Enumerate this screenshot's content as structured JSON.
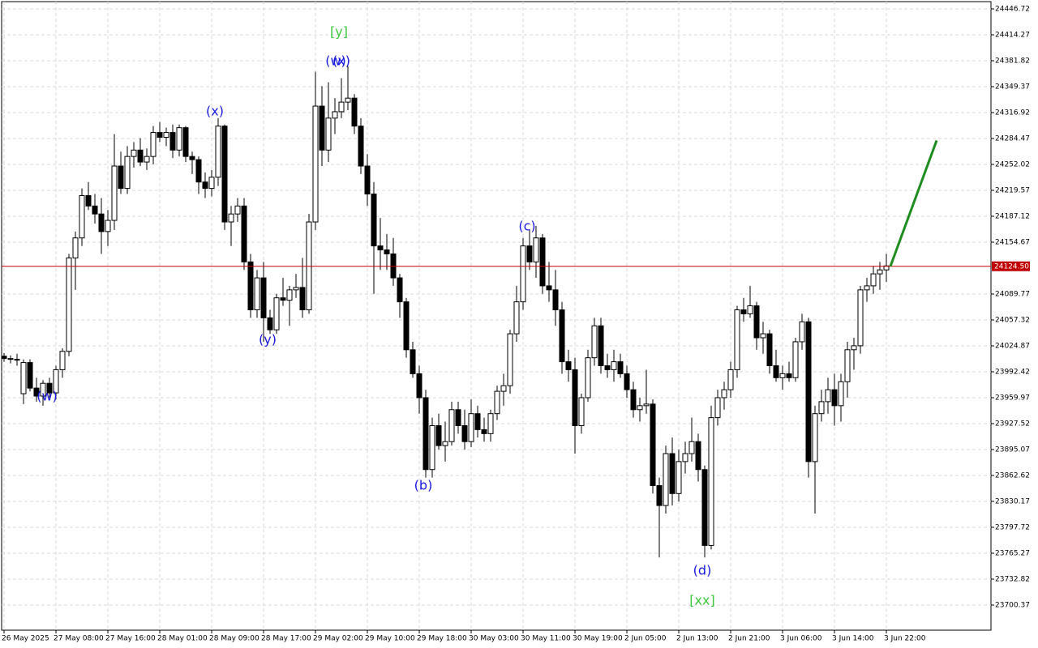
{
  "chart_data": {
    "type": "candlestick",
    "categories": [
      "26 May 2025",
      null,
      null,
      null,
      null,
      null,
      null,
      null,
      "27 May 08:00",
      null,
      null,
      null,
      null,
      null,
      null,
      null,
      "27 May 16:00",
      null,
      null,
      null,
      null,
      null,
      null,
      null,
      "28 May 01:00",
      null,
      null,
      null,
      null,
      null,
      null,
      null,
      "28 May 09:00",
      null,
      null,
      null,
      null,
      null,
      null,
      null,
      "28 May 17:00",
      null,
      null,
      null,
      null,
      null,
      null,
      null,
      "29 May 02:00",
      null,
      null,
      null,
      null,
      null,
      null,
      null,
      "29 May 10:00",
      null,
      null,
      null,
      null,
      null,
      null,
      null,
      "29 May 18:00",
      null,
      null,
      null,
      null,
      null,
      null,
      null,
      "30 May 03:00",
      null,
      null,
      null,
      null,
      null,
      null,
      null,
      "30 May 11:00",
      null,
      null,
      null,
      null,
      null,
      null,
      null,
      "30 May 19:00",
      null,
      null,
      null,
      null,
      null,
      null,
      null,
      "2 Jun 05:00",
      null,
      null,
      null,
      null,
      null,
      null,
      null,
      "2 Jun 13:00",
      null,
      null,
      null,
      null,
      null,
      null,
      null,
      "2 Jun 21:00",
      null,
      null,
      null,
      null,
      null,
      null,
      null,
      "3 Jun 06:00",
      null,
      null,
      null,
      null,
      null,
      null,
      null,
      "3 Jun 14:00",
      null,
      null,
      null,
      null,
      null,
      null,
      null,
      "3 Jun 22:00"
    ],
    "ohlc": [
      [
        24012,
        24016,
        24005,
        24009
      ],
      [
        24009,
        24013,
        24003,
        24008
      ],
      [
        24008,
        24015,
        24000,
        24007
      ],
      [
        23965,
        24008,
        23952,
        24004
      ],
      [
        24004,
        24008,
        23968,
        23972
      ],
      [
        23972,
        23985,
        23955,
        23962
      ],
      [
        23962,
        23982,
        23950,
        23978
      ],
      [
        23978,
        23985,
        23960,
        23966
      ],
      [
        23966,
        24000,
        23958,
        23995
      ],
      [
        23995,
        24022,
        23985,
        24018
      ],
      [
        24018,
        24140,
        24012,
        24135
      ],
      [
        24135,
        24168,
        24095,
        24160
      ],
      [
        24160,
        24222,
        24150,
        24213
      ],
      [
        24213,
        24230,
        24195,
        24200
      ],
      [
        24200,
        24215,
        24178,
        24190
      ],
      [
        24190,
        24210,
        24140,
        24168
      ],
      [
        24168,
        24195,
        24150,
        24182
      ],
      [
        24182,
        24290,
        24170,
        24250
      ],
      [
        24250,
        24268,
        24215,
        24222
      ],
      [
        24222,
        24275,
        24215,
        24262
      ],
      [
        24262,
        24280,
        24248,
        24270
      ],
      [
        24270,
        24285,
        24250,
        24255
      ],
      [
        24255,
        24272,
        24245,
        24262
      ],
      [
        24262,
        24300,
        24252,
        24292
      ],
      [
        24292,
        24305,
        24280,
        24286
      ],
      [
        24286,
        24298,
        24275,
        24292
      ],
      [
        24292,
        24302,
        24260,
        24270
      ],
      [
        24270,
        24302,
        24262,
        24298
      ],
      [
        24298,
        24300,
        24255,
        24262
      ],
      [
        24262,
        24268,
        24240,
        24258
      ],
      [
        24258,
        24262,
        24215,
        24230
      ],
      [
        24230,
        24242,
        24210,
        24222
      ],
      [
        24222,
        24245,
        24212,
        24236
      ],
      [
        24236,
        24310,
        24225,
        24300
      ],
      [
        24300,
        24302,
        24170,
        24180
      ],
      [
        24180,
        24200,
        24150,
        24190
      ],
      [
        24190,
        24210,
        24180,
        24200
      ],
      [
        24200,
        24210,
        24120,
        24130
      ],
      [
        24130,
        24140,
        24060,
        24070
      ],
      [
        24070,
        24120,
        24060,
        24110
      ],
      [
        24110,
        24130,
        24030,
        24060
      ],
      [
        24060,
        24070,
        24040,
        24045
      ],
      [
        24045,
        24090,
        24040,
        24085
      ],
      [
        24085,
        24110,
        24075,
        24082
      ],
      [
        24082,
        24100,
        24050,
        24095
      ],
      [
        24095,
        24115,
        24085,
        24098
      ],
      [
        24098,
        24135,
        24060,
        24070
      ],
      [
        24070,
        24190,
        24065,
        24180
      ],
      [
        24180,
        24368,
        24170,
        24325
      ],
      [
        24325,
        24350,
        24250,
        24270
      ],
      [
        24270,
        24355,
        24255,
        24310
      ],
      [
        24310,
        24335,
        24290,
        24318
      ],
      [
        24318,
        24360,
        24310,
        24330
      ],
      [
        24330,
        24375,
        24320,
        24335
      ],
      [
        24335,
        24340,
        24290,
        24300
      ],
      [
        24300,
        24310,
        24240,
        24250
      ],
      [
        24250,
        24265,
        24200,
        24215
      ],
      [
        24215,
        24230,
        24090,
        24150
      ],
      [
        24150,
        24185,
        24120,
        24145
      ],
      [
        24145,
        24165,
        24120,
        24140
      ],
      [
        24140,
        24160,
        24100,
        24110
      ],
      [
        24110,
        24115,
        24060,
        24080
      ],
      [
        24080,
        24085,
        24010,
        24020
      ],
      [
        24020,
        24030,
        23985,
        23990
      ],
      [
        23990,
        24000,
        23940,
        23960
      ],
      [
        23960,
        23970,
        23860,
        23870
      ],
      [
        23870,
        23935,
        23860,
        23925
      ],
      [
        23925,
        23940,
        23895,
        23900
      ],
      [
        23900,
        23930,
        23880,
        23905
      ],
      [
        23905,
        23955,
        23900,
        23945
      ],
      [
        23945,
        23955,
        23915,
        23925
      ],
      [
        23925,
        23945,
        23895,
        23905
      ],
      [
        23905,
        23958,
        23898,
        23940
      ],
      [
        23940,
        23950,
        23910,
        23920
      ],
      [
        23920,
        23935,
        23905,
        23915
      ],
      [
        23915,
        23945,
        23905,
        23940
      ],
      [
        23940,
        23975,
        23932,
        23968
      ],
      [
        23968,
        23990,
        23950,
        23975
      ],
      [
        23975,
        24045,
        23965,
        24040
      ],
      [
        24040,
        24100,
        24030,
        24080
      ],
      [
        24080,
        24160,
        24070,
        24150
      ],
      [
        24150,
        24170,
        24120,
        24130
      ],
      [
        24130,
        24175,
        24110,
        24160
      ],
      [
        24160,
        24165,
        24090,
        24100
      ],
      [
        24100,
        24130,
        24080,
        24095
      ],
      [
        24095,
        24120,
        24050,
        24070
      ],
      [
        24070,
        24080,
        23990,
        24005
      ],
      [
        24005,
        24020,
        23980,
        23995
      ],
      [
        23995,
        24010,
        23890,
        23925
      ],
      [
        23925,
        23965,
        23915,
        23960
      ],
      [
        23960,
        24020,
        23955,
        24010
      ],
      [
        24010,
        24060,
        24000,
        24050
      ],
      [
        24050,
        24060,
        23990,
        24000
      ],
      [
        24000,
        24015,
        23985,
        23995
      ],
      [
        23995,
        24020,
        23980,
        24005
      ],
      [
        24005,
        24015,
        23985,
        23990
      ],
      [
        23990,
        24000,
        23960,
        23970
      ],
      [
        23970,
        23980,
        23935,
        23945
      ],
      [
        23945,
        23960,
        23930,
        23950
      ],
      [
        23950,
        23995,
        23940,
        23952
      ],
      [
        23952,
        23958,
        23840,
        23850
      ],
      [
        23850,
        23860,
        23760,
        23825
      ],
      [
        23825,
        23900,
        23815,
        23890
      ],
      [
        23890,
        23910,
        23825,
        23840
      ],
      [
        23840,
        23895,
        23830,
        23880
      ],
      [
        23880,
        23905,
        23865,
        23890
      ],
      [
        23890,
        23935,
        23880,
        23905
      ],
      [
        23905,
        23915,
        23855,
        23870
      ],
      [
        23870,
        23875,
        23760,
        23775
      ],
      [
        23775,
        23950,
        23770,
        23935
      ],
      [
        23935,
        23970,
        23925,
        23960
      ],
      [
        23960,
        23980,
        23945,
        23970
      ],
      [
        23970,
        24005,
        23960,
        23995
      ],
      [
        23995,
        24075,
        23985,
        24070
      ],
      [
        24070,
        24085,
        24055,
        24065
      ],
      [
        24065,
        24100,
        24060,
        24075
      ],
      [
        24075,
        24080,
        24020,
        24035
      ],
      [
        24035,
        24055,
        24015,
        24040
      ],
      [
        24040,
        24045,
        23990,
        24000
      ],
      [
        24000,
        24020,
        23980,
        23985
      ],
      [
        23985,
        24000,
        23970,
        23990
      ],
      [
        23990,
        24005,
        23980,
        23985
      ],
      [
        23985,
        24035,
        23980,
        24030
      ],
      [
        24030,
        24065,
        24020,
        24055
      ],
      [
        24055,
        24060,
        23860,
        23880
      ],
      [
        23880,
        23950,
        23815,
        23940
      ],
      [
        23940,
        23970,
        23930,
        23955
      ],
      [
        23955,
        23985,
        23940,
        23970
      ],
      [
        23970,
        23990,
        23925,
        23950
      ],
      [
        23950,
        23990,
        23930,
        23980
      ],
      [
        23980,
        24030,
        23960,
        24020
      ],
      [
        24020,
        24035,
        23995,
        24025
      ],
      [
        24025,
        24100,
        24015,
        24095
      ],
      [
        24095,
        24110,
        24080,
        24100
      ],
      [
        24100,
        24125,
        24090,
        24115
      ],
      [
        24115,
        24130,
        24095,
        24120
      ],
      [
        24120,
        24140,
        24105,
        24125
      ]
    ],
    "up_color": "#ffffff",
    "down_color": "#000000",
    "ylim": [
      23668.93,
      24455.85
    ],
    "yticks": [
      24446.72,
      24414.27,
      24381.82,
      24349.37,
      24316.92,
      24284.47,
      24252.02,
      24219.57,
      24187.12,
      24154.67,
      24089.77,
      24057.32,
      24024.87,
      23992.42,
      23959.97,
      23927.52,
      23895.07,
      23862.62,
      23830.17,
      23797.72,
      23765.27,
      23732.82,
      23700.37
    ],
    "grid": true,
    "current_price": {
      "value": 24124.5,
      "label": "24124.50"
    },
    "current_color": "#c00000",
    "forecast": {
      "start": 24124.5,
      "end": 24282
    },
    "forecast_color": "#1e8c1e",
    "annotations": [
      {
        "text": "(w)",
        "color": "#1a1adc"
      },
      {
        "text": "(x)",
        "color": "#1a1adc"
      },
      {
        "text": "(y)",
        "color": "#1a1adc"
      },
      {
        "text": "(w)",
        "color": "#1a1adc"
      },
      {
        "text": "(x)",
        "color": "#1a1adc"
      },
      {
        "text": "[y]",
        "color": "#3cc83c"
      },
      {
        "text": "(b)",
        "color": "#1a1adc"
      },
      {
        "text": "(c)",
        "color": "#1a1adc"
      },
      {
        "text": "(d)",
        "color": "#1a1adc"
      },
      {
        "text": "[xx]",
        "color": "#3cc83c"
      }
    ]
  }
}
